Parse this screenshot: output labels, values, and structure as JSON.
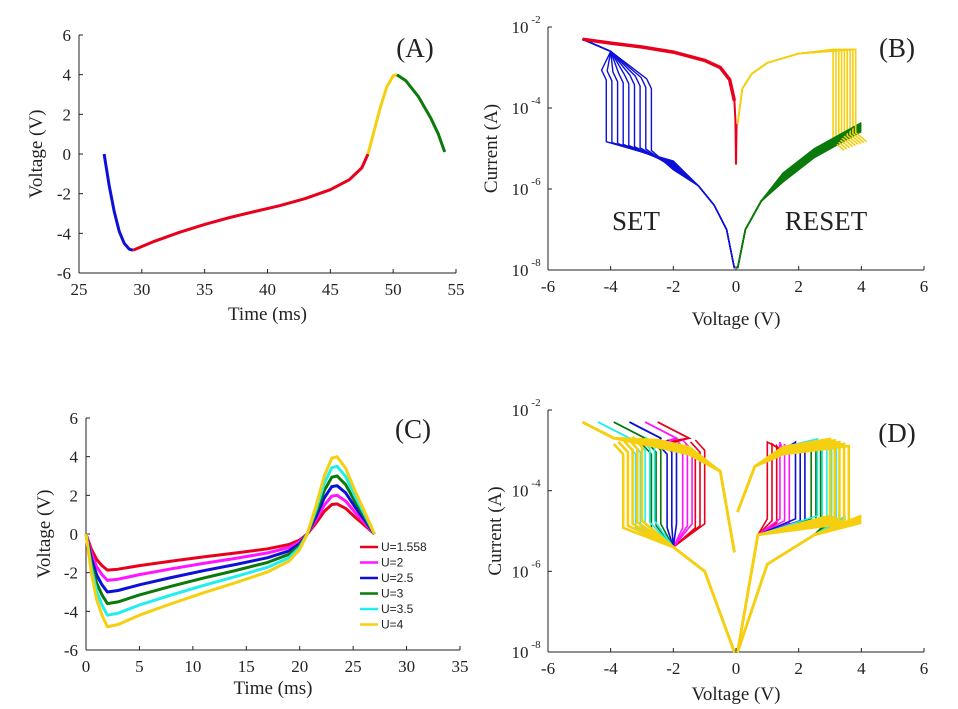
{
  "colors": {
    "red": "#e8001c",
    "blue": "#0d10d8",
    "yellow": "#f5cf10",
    "green": "#0b7a0b",
    "magenta": "#ff14ff",
    "cyan": "#22eeee",
    "axis": "#222222"
  },
  "chart_data": [
    {
      "panel_label": "(A)",
      "type": "line",
      "xlabel": "Time (ms)",
      "ylabel": "Voltage (V)",
      "xlim": [
        25,
        55
      ],
      "ylim": [
        -6,
        6
      ],
      "xticks": [
        "25",
        "30",
        "35",
        "40",
        "45",
        "50",
        "55"
      ],
      "yticks": [
        "-6",
        "-4",
        "-2",
        "0",
        "2",
        "4",
        "6"
      ],
      "series": [
        {
          "color": "blue",
          "x": [
            27,
            27.4,
            27.8,
            28.2,
            28.6,
            29,
            29.3
          ],
          "y": [
            0,
            -1.6,
            -2.9,
            -3.9,
            -4.5,
            -4.8,
            -4.85
          ]
        },
        {
          "color": "red",
          "x": [
            29.3,
            31,
            33,
            35,
            37,
            39,
            41,
            43,
            45,
            46.5,
            47.5,
            48
          ],
          "y": [
            -4.85,
            -4.4,
            -3.95,
            -3.55,
            -3.2,
            -2.9,
            -2.6,
            -2.25,
            -1.8,
            -1.3,
            -0.7,
            0
          ]
        },
        {
          "color": "yellow",
          "x": [
            48,
            48.5,
            49,
            49.5,
            50,
            50.3
          ],
          "y": [
            0,
            1.2,
            2.4,
            3.4,
            3.95,
            4
          ]
        },
        {
          "color": "green",
          "x": [
            50.3,
            51,
            52,
            53,
            53.6,
            54.1
          ],
          "y": [
            4,
            3.7,
            2.9,
            1.8,
            1.0,
            0.1
          ]
        }
      ]
    },
    {
      "panel_label": "(B)",
      "type": "line",
      "xlabel": "Voltage (V)",
      "ylabel": "Current (A)",
      "yscale": "log",
      "xlim": [
        -6,
        6
      ],
      "ylim": [
        1e-08,
        0.01
      ],
      "xticks": [
        "-6",
        "-4",
        "-2",
        "0",
        "2",
        "4",
        "6"
      ],
      "yticks": [
        {
          "base": "10",
          "exp": "-8"
        },
        {
          "base": "10",
          "exp": "-6"
        },
        {
          "base": "10",
          "exp": "-4"
        },
        {
          "base": "10",
          "exp": "-2"
        }
      ],
      "annotations": [
        "SET",
        "RESET"
      ],
      "series": [
        {
          "color": "red",
          "x": [
            -4.9,
            -4,
            -3,
            -2,
            -1,
            -0.5,
            -0.2,
            -0.05
          ],
          "y": [
            0.005,
            0.004,
            0.0032,
            0.0024,
            0.0015,
            0.001,
            0.0005,
            0.00015
          ]
        },
        {
          "color": "yellow",
          "x": [
            0.05,
            0.2,
            0.5,
            1,
            2,
            3,
            3.3
          ],
          "y": [
            4e-05,
            0.0003,
            0.0007,
            0.0013,
            0.0022,
            0.0028,
            0.003
          ]
        },
        {
          "color": "blue",
          "x": [
            -0.05,
            -0.3,
            -0.7,
            -1.2,
            -2,
            -2.8
          ],
          "y": [
            1.1e-08,
            1e-07,
            4e-07,
            1.2e-06,
            4e-06,
            1.2e-05
          ]
        },
        {
          "color": "green",
          "x": [
            0.05,
            0.3,
            0.8,
            1.5,
            2.5,
            4
          ],
          "y": [
            1.1e-08,
            1e-07,
            5e-07,
            2e-06,
            8e-06,
            4e-05
          ]
        }
      ]
    },
    {
      "panel_label": "(C)",
      "type": "line",
      "xlabel": "Time (ms)",
      "ylabel": "Voltage (V)",
      "xlim": [
        0,
        35
      ],
      "ylim": [
        -6,
        6
      ],
      "xticks": [
        "0",
        "5",
        "10",
        "15",
        "20",
        "25",
        "30",
        "35"
      ],
      "yticks": [
        "-6",
        "-4",
        "-2",
        "0",
        "2",
        "4",
        "6"
      ],
      "series": [
        {
          "name": "U=1.558",
          "color": "red",
          "U": 1.558
        },
        {
          "name": "U=2",
          "color": "magenta",
          "U": 2
        },
        {
          "name": "U=2.5",
          "color": "blue",
          "U": 2.5
        },
        {
          "name": "U=3",
          "color": "green",
          "U": 3
        },
        {
          "name": "U=3.5",
          "color": "cyan",
          "U": 3.5
        },
        {
          "name": "U=4",
          "color": "yellow",
          "U": 4
        }
      ],
      "base_waveform": {
        "x": [
          0,
          0.5,
          1,
          1.5,
          2,
          3,
          5,
          8,
          11,
          14,
          17,
          19,
          20,
          20.7,
          21.5,
          22.3,
          23,
          23.5,
          24.3,
          25.2,
          26.2,
          27
        ],
        "y_at_U1": [
          0,
          -0.5,
          -0.85,
          -1.05,
          -1.2,
          -1.17,
          -1.05,
          -0.9,
          -0.76,
          -0.63,
          -0.49,
          -0.35,
          -0.2,
          0,
          0.35,
          0.75,
          0.98,
          1,
          0.85,
          0.55,
          0.25,
          0
        ]
      }
    },
    {
      "panel_label": "(D)",
      "type": "line",
      "xlabel": "Voltage (V)",
      "ylabel": "Current (A)",
      "yscale": "log",
      "xlim": [
        -6,
        6
      ],
      "ylim": [
        1e-08,
        0.01
      ],
      "xticks": [
        "-6",
        "-4",
        "-2",
        "0",
        "2",
        "4",
        "6"
      ],
      "yticks": [
        {
          "base": "10",
          "exp": "-8"
        },
        {
          "base": "10",
          "exp": "-6"
        },
        {
          "base": "10",
          "exp": "-4"
        },
        {
          "base": "10",
          "exp": "-2"
        }
      ],
      "series_colors": [
        "yellow",
        "cyan",
        "green",
        "blue",
        "magenta",
        "red"
      ]
    }
  ]
}
